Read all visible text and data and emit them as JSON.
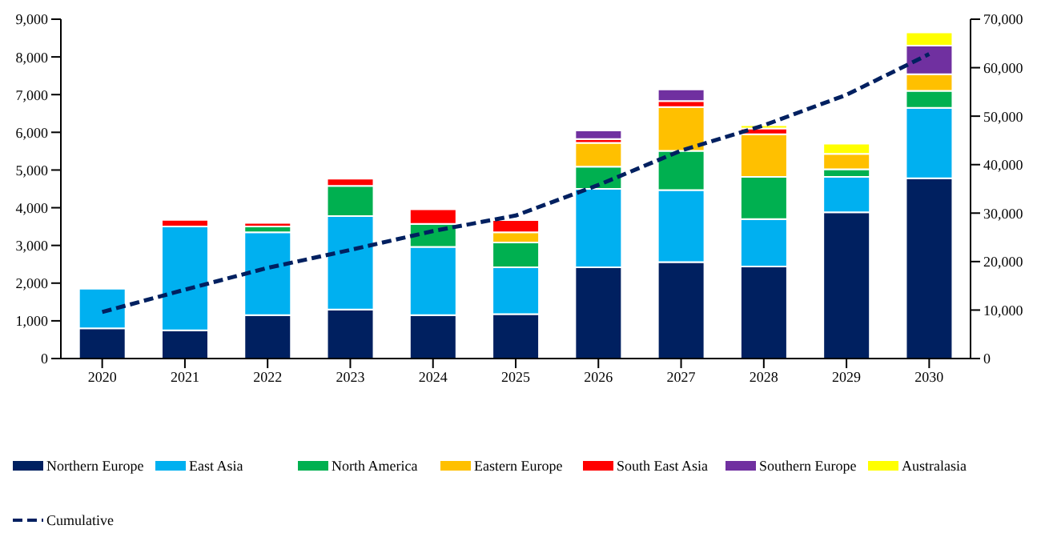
{
  "chart_data": {
    "type": "bar",
    "stacked": true,
    "categories": [
      "2020",
      "2021",
      "2022",
      "2023",
      "2024",
      "2025",
      "2026",
      "2027",
      "2028",
      "2029",
      "2030"
    ],
    "series": [
      {
        "name": "Northern Europe",
        "color": "#002060",
        "values": [
          800,
          750,
          1150,
          1300,
          1150,
          1180,
          2420,
          2560,
          2440,
          3880,
          4780
        ]
      },
      {
        "name": "East Asia",
        "color": "#00b0f0",
        "values": [
          1050,
          2750,
          2200,
          2480,
          1810,
          1240,
          2080,
          1910,
          1260,
          940,
          1870
        ]
      },
      {
        "name": "North America",
        "color": "#00b050",
        "values": [
          null,
          null,
          150,
          800,
          610,
          660,
          590,
          1040,
          1120,
          200,
          450
        ]
      },
      {
        "name": "Eastern Europe",
        "color": "#ffc000",
        "values": [
          null,
          null,
          null,
          null,
          null,
          270,
          630,
          1160,
          1130,
          410,
          440
        ]
      },
      {
        "name": "South East Asia",
        "color": "#ff0000",
        "values": [
          null,
          180,
          100,
          190,
          390,
          320,
          100,
          160,
          150,
          null,
          null
        ]
      },
      {
        "name": "Southern Europe",
        "color": "#7030a0",
        "values": [
          null,
          null,
          null,
          null,
          null,
          null,
          230,
          310,
          null,
          null,
          760
        ]
      },
      {
        "name": "Australasia",
        "color": "#ffff00",
        "values": [
          null,
          null,
          null,
          null,
          null,
          null,
          null,
          null,
          90,
          270,
          350
        ]
      },
      {
        "name": "Cumulative",
        "type": "line",
        "axis": "y2",
        "color": "#002060",
        "line_style": "dashed",
        "marker": "none",
        "values": [
          9600,
          14200,
          18700,
          22400,
          26300,
          29500,
          35800,
          42900,
          48100,
          54400,
          62800
        ]
      }
    ],
    "ylim": [
      0,
      9000
    ],
    "yticks": [
      0,
      {
        "value": 1000,
        "label": "1,000"
      },
      {
        "value": 2000,
        "label": "2,000"
      },
      {
        "value": 3000,
        "label": "3,000"
      },
      {
        "value": 4000,
        "label": "4,000"
      },
      {
        "value": 5000,
        "label": "5,000"
      },
      {
        "value": 6000,
        "label": "6,000"
      },
      {
        "value": 7000,
        "label": "7,000"
      },
      {
        "value": 8000,
        "label": "8,000"
      },
      {
        "value": 9000,
        "label": "9,000"
      }
    ],
    "y2lim": [
      0,
      70000
    ],
    "y2ticks": [
      0,
      {
        "value": 10000,
        "label": "10,000"
      },
      {
        "value": 20000,
        "label": "20,000"
      },
      {
        "value": 30000,
        "label": "30,000"
      },
      {
        "value": 40000,
        "label": "40,000"
      },
      {
        "value": 50000,
        "label": "50,000"
      },
      {
        "value": 60000,
        "label": "60,000"
      },
      {
        "value": 70000,
        "label": "70,000"
      }
    ],
    "grid": false,
    "legend": "bottom"
  }
}
